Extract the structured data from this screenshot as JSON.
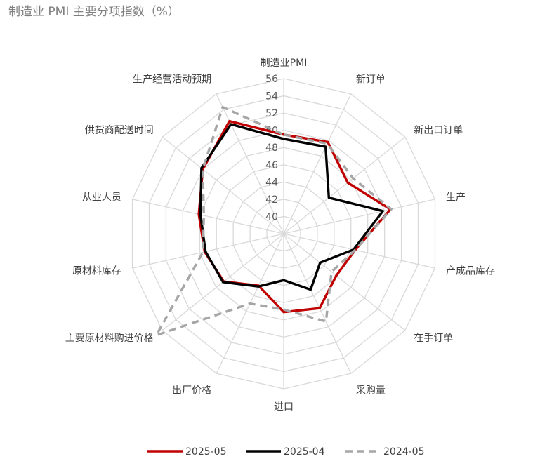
{
  "title": "制造业 PMI 主要分项指数（%）",
  "chart_data": {
    "type": "radar",
    "title": "制造业 PMI 主要分项指数（%）",
    "categories": [
      "制造业PMI",
      "新订单",
      "新出口订单",
      "生产",
      "产成品库存",
      "在手订单",
      "采购量",
      "进口",
      "出厂价格",
      "主要原材料购进价格",
      "原材料库存",
      "从业人员",
      "供货商配送时间",
      "生产经营活动预期"
    ],
    "series": [
      {
        "name": "2025-05",
        "color": "#c00000",
        "dash": "",
        "values": [
          49.5,
          49.8,
          47.5,
          50.7,
          46.5,
          45.8,
          47.6,
          47.1,
          44.7,
          46.9,
          47.4,
          48.1,
          50.0,
          52.5
        ]
      },
      {
        "name": "2025-04",
        "color": "#000000",
        "dash": "",
        "values": [
          49.0,
          49.2,
          44.7,
          49.8,
          46.3,
          43.4,
          45.2,
          43.4,
          44.8,
          47.0,
          47.3,
          47.9,
          50.2,
          52.1
        ]
      },
      {
        "name": "2024-05",
        "color": "#a6a6a6",
        "dash": "10,7",
        "values": [
          49.5,
          49.6,
          48.3,
          50.8,
          46.5,
          45.1,
          49.3,
          46.8,
          47.0,
          56.9,
          47.6,
          47.5,
          50.0,
          54.3
        ]
      }
    ],
    "rticks": [
      40,
      42,
      44,
      46,
      48,
      50,
      52,
      54,
      56
    ],
    "rlim": [
      38,
      56
    ],
    "grid": true,
    "legend_position": "bottom"
  }
}
